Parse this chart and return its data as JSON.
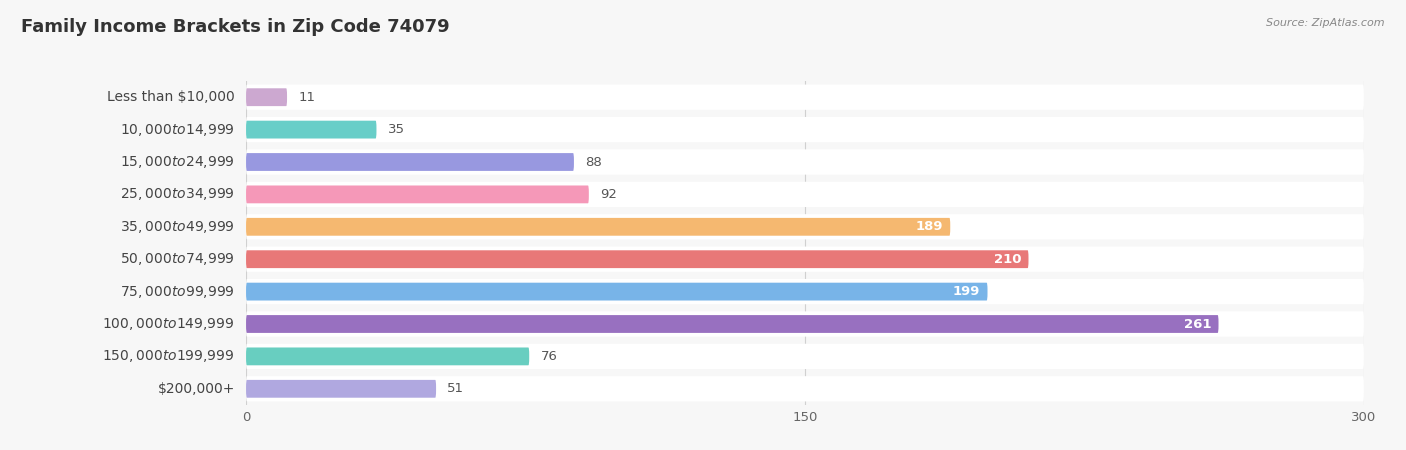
{
  "title": "Family Income Brackets in Zip Code 74079",
  "source": "Source: ZipAtlas.com",
  "categories": [
    "Less than $10,000",
    "$10,000 to $14,999",
    "$15,000 to $24,999",
    "$25,000 to $34,999",
    "$35,000 to $49,999",
    "$50,000 to $74,999",
    "$75,000 to $99,999",
    "$100,000 to $149,999",
    "$150,000 to $199,999",
    "$200,000+"
  ],
  "values": [
    11,
    35,
    88,
    92,
    189,
    210,
    199,
    261,
    76,
    51
  ],
  "bar_colors": [
    "#cca8d0",
    "#68cec8",
    "#9898e0",
    "#f598b8",
    "#f5b870",
    "#e87878",
    "#78b4e8",
    "#9870c0",
    "#68cec0",
    "#b0a8e0"
  ],
  "background_color": "#f7f7f7",
  "xlim": [
    0,
    300
  ],
  "xticks": [
    0,
    150,
    300
  ],
  "title_fontsize": 13,
  "label_fontsize": 10,
  "value_fontsize": 9.5
}
